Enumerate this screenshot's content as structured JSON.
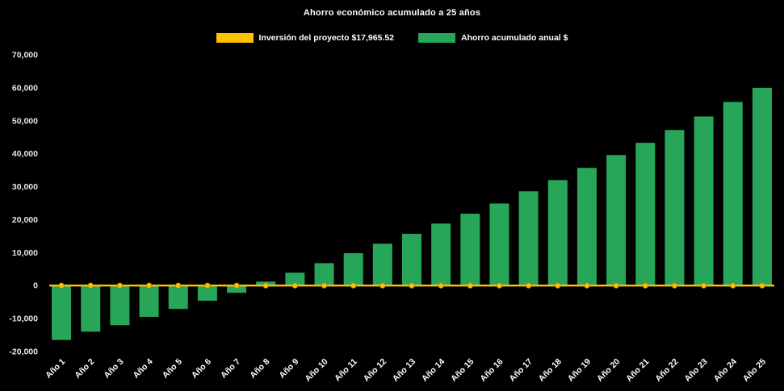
{
  "chart_data": {
    "type": "bar",
    "title": "Ahorro económico acumulado a 25 años",
    "background_color": "#000000",
    "text_color": "#FFFFFF",
    "grid": false,
    "legend_position": "top",
    "categories": [
      "Año 1",
      "Año 2",
      "Año 3",
      "Año 4",
      "Año 5",
      "Año 6",
      "Año 7",
      "Año 8",
      "Año 9",
      "Año 10",
      "Año 11",
      "Año 12",
      "Año 13",
      "Año 14",
      "Año 15",
      "Año 16",
      "Año 17",
      "Año 18",
      "Año 19",
      "Año 20",
      "Año 21",
      "Año 22",
      "Año 23",
      "Año 24",
      "Año 25"
    ],
    "series": [
      {
        "name": "Inversión del proyecto $17,965.52",
        "type": "line",
        "color": "#FFC000",
        "values": [
          0,
          0,
          0,
          0,
          0,
          0,
          0,
          0,
          0,
          0,
          0,
          0,
          0,
          0,
          0,
          0,
          0,
          0,
          0,
          0,
          0,
          0,
          0,
          0,
          0
        ]
      },
      {
        "name": "Ahorro acumulado anual $",
        "type": "bar",
        "color": "#27A65A",
        "values": [
          -16500,
          -14000,
          -12000,
          -9500,
          -7100,
          -4600,
          -2200,
          1200,
          3900,
          6800,
          9800,
          12700,
          15700,
          18800,
          21800,
          24900,
          28600,
          32000,
          35700,
          39600,
          43300,
          47200,
          51300,
          55700,
          60000
        ]
      }
    ],
    "ylim": [
      -20000,
      70000
    ],
    "ytick_step": 10000,
    "ytick_labels": [
      "70,000",
      "60,000",
      "50,000",
      "40,000",
      "30,000",
      "20,000",
      "10,000",
      "0",
      "-10,000",
      "-20,000"
    ],
    "xlabel": "",
    "ylabel": ""
  }
}
